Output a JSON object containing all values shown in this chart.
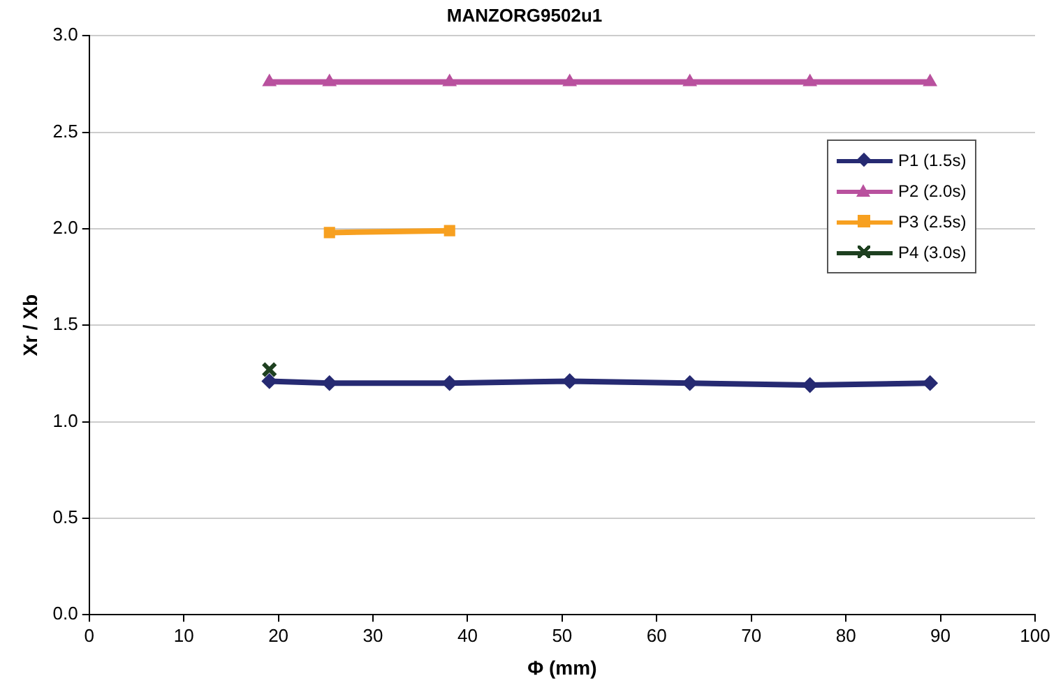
{
  "chart_data": {
    "type": "line",
    "title": "MANZORG9502u1",
    "xlabel": "Φ (mm)",
    "ylabel": "Xr / Xb",
    "xlim": [
      0,
      100
    ],
    "xticks": [
      0,
      10,
      20,
      30,
      40,
      50,
      60,
      70,
      80,
      90,
      100
    ],
    "ylim": [
      0,
      3
    ],
    "yticks": [
      {
        "value": 0,
        "label": "0.0"
      },
      {
        "value": 0.5,
        "label": "0.5"
      },
      {
        "value": 1,
        "label": "1.0"
      },
      {
        "value": 1.5,
        "label": "1.5"
      },
      {
        "value": 2,
        "label": "2.0"
      },
      {
        "value": 2.5,
        "label": "2.5"
      },
      {
        "value": 3,
        "label": "3.0"
      }
    ],
    "grid": "y",
    "legend": "right",
    "line_style": "solid",
    "series": [
      {
        "name": "P1 (1.5s)",
        "color": "#262a72",
        "marker": "diamond",
        "x": [
          19.05,
          25.4,
          38.1,
          50.8,
          63.5,
          76.2,
          88.9
        ],
        "values": [
          1.21,
          1.2,
          1.2,
          1.21,
          1.2,
          1.19,
          1.2
        ]
      },
      {
        "name": "P2 (2.0s)",
        "color": "#b9519e",
        "marker": "triangle",
        "x": [
          19.05,
          25.4,
          38.1,
          50.8,
          63.5,
          76.2,
          88.9
        ],
        "values": [
          2.76,
          2.76,
          2.76,
          2.76,
          2.76,
          2.76,
          2.76
        ]
      },
      {
        "name": "P3 (2.5s)",
        "color": "#f7a020",
        "marker": "square",
        "x": [
          25.4,
          38.1
        ],
        "values": [
          1.98,
          1.99
        ]
      },
      {
        "name": "P4 (3.0s)",
        "color": "#1e4020",
        "marker": "cross",
        "x": [
          19.05
        ],
        "values": [
          1.27
        ]
      }
    ]
  }
}
